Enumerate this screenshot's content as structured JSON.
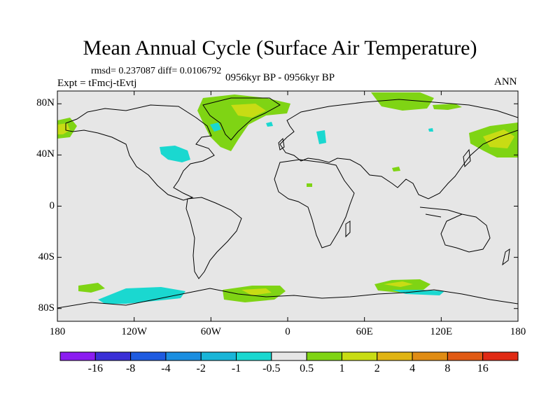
{
  "title": "Mean Annual Cycle (Surface Air Temperature)",
  "stats": "rmsd= 0.237087 diff= 0.0106792",
  "experiment": "Expt = tFmcj-tEvtj",
  "period": "0956kyr BP - 0956kyr BP",
  "season": "ANN",
  "map": {
    "background_color": "#e6e6e6",
    "lat_ticks": [
      {
        "value": 80,
        "label": "80N"
      },
      {
        "value": 40,
        "label": "40N"
      },
      {
        "value": 0,
        "label": "0"
      },
      {
        "value": -40,
        "label": "40S"
      },
      {
        "value": -80,
        "label": "80S"
      }
    ],
    "lon_ticks": [
      {
        "value": -180,
        "label": "180"
      },
      {
        "value": -120,
        "label": "120W"
      },
      {
        "value": -60,
        "label": "60W"
      },
      {
        "value": 0,
        "label": "0"
      },
      {
        "value": 60,
        "label": "60E"
      },
      {
        "value": 120,
        "label": "120E"
      },
      {
        "value": 180,
        "label": "180"
      }
    ]
  },
  "colorbar": {
    "colors": [
      "#8b1cf0",
      "#3a2fd6",
      "#1e5be0",
      "#1b8ee0",
      "#19b5d8",
      "#1ad8d0",
      "#e6e6e6",
      "#7fd414",
      "#c8dc14",
      "#e0b414",
      "#e08c14",
      "#e05a14",
      "#e02a14"
    ],
    "labels": [
      "-16",
      "-8",
      "-4",
      "-2",
      "-1",
      "-0.5",
      "0.5",
      "1",
      "2",
      "4",
      "8",
      "16"
    ]
  }
}
